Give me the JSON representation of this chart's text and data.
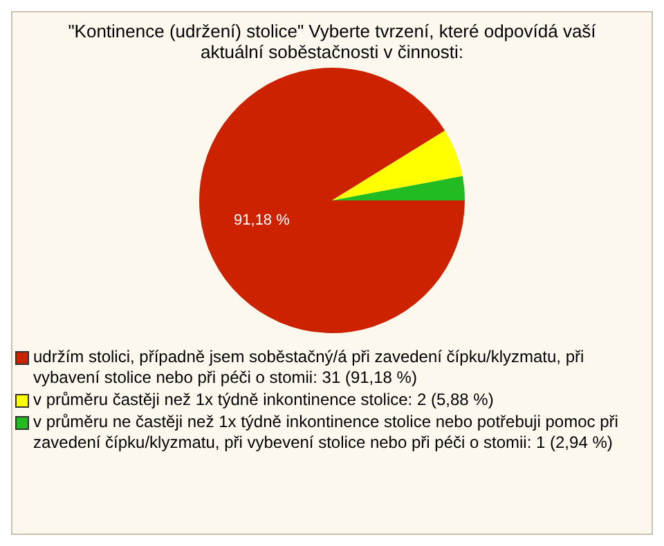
{
  "chart_data": {
    "type": "pie",
    "title": "\"Kontinence (udržení) stolice\" Vyberte tvrzení, které odpovídá vaší aktuální soběstačnosti v činnosti:",
    "categories": [
      "udržím stolici, případně jsem soběstačný/á při zavedení čípku/klyzmatu, při vybavení stolice nebo při péči o stomii: 31 (91,18 %)",
      "v průměru častěji než 1x týdně inkontinence stolice: 2 (5,88 %)",
      "v průměru ne častěji než 1x týdně inkontinence stolice nebo potřebuji pomoc při zavedení čípku/klyzmatu, při vybevení stolice nebo při péči o stomii: 1 (2,94 %)"
    ],
    "values": [
      91.18,
      5.88,
      2.94
    ],
    "colors": [
      "#cc2200",
      "#ffff00",
      "#22bb22"
    ],
    "value_labels": [
      "91,18 %",
      null,
      null
    ],
    "legend": "bottom"
  }
}
